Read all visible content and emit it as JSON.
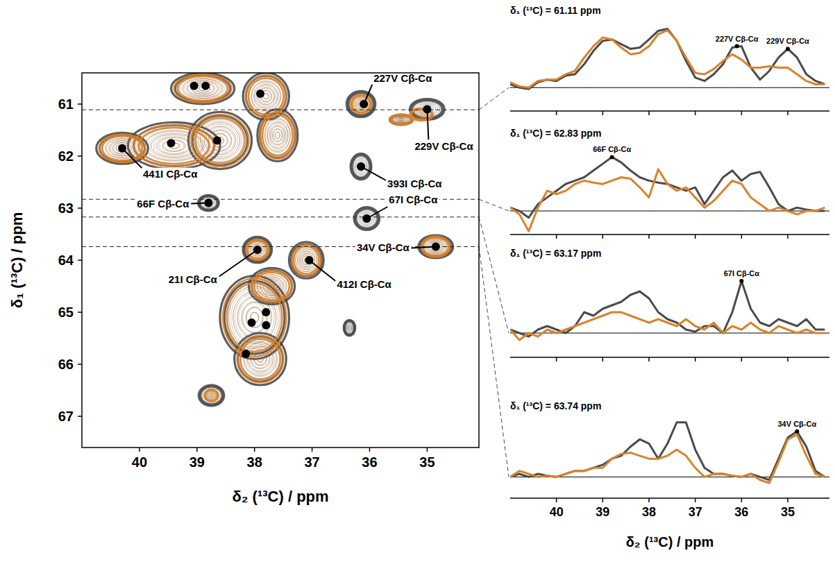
{
  "chart_data": [
    {
      "type": "contour",
      "x_label": "δ₂ (¹³C) / ppm",
      "y_label": "δ₁ (¹³C) / ppm",
      "xlim": [
        41.0,
        34.1
      ],
      "ylim": [
        60.4,
        67.6
      ],
      "xticks": [
        40,
        39,
        38,
        37,
        36,
        35
      ],
      "yticks": [
        61,
        62,
        63,
        64,
        65,
        66,
        67
      ],
      "series": [
        {
          "color": "#4a4a4a",
          "peaks": [
            {
              "x": 40.3,
              "y": 61.85,
              "x_width": 0.45,
              "y_width": 0.3
            },
            {
              "x": 39.4,
              "y": 61.8,
              "x_width": 0.8,
              "y_width": 0.45
            },
            {
              "x": 38.6,
              "y": 61.7,
              "x_width": 0.55,
              "y_width": 0.55
            },
            {
              "x": 38.9,
              "y": 60.7,
              "x_width": 0.55,
              "y_width": 0.3
            },
            {
              "x": 37.8,
              "y": 60.85,
              "x_width": 0.4,
              "y_width": 0.45
            },
            {
              "x": 37.6,
              "y": 61.6,
              "x_width": 0.35,
              "y_width": 0.5
            },
            {
              "x": 36.15,
              "y": 61.0,
              "x_width": 0.25,
              "y_width": 0.25
            },
            {
              "x": 35.0,
              "y": 61.1,
              "x_width": 0.3,
              "y_width": 0.2
            },
            {
              "x": 35.45,
              "y": 61.3,
              "x_width": 0.2,
              "y_width": 0.1
            },
            {
              "x": 36.15,
              "y": 62.2,
              "x_width": 0.18,
              "y_width": 0.25
            },
            {
              "x": 38.8,
              "y": 62.9,
              "x_width": 0.18,
              "y_width": 0.15
            },
            {
              "x": 36.05,
              "y": 63.2,
              "x_width": 0.22,
              "y_width": 0.22
            },
            {
              "x": 37.95,
              "y": 63.8,
              "x_width": 0.25,
              "y_width": 0.25
            },
            {
              "x": 37.1,
              "y": 64.0,
              "x_width": 0.3,
              "y_width": 0.35
            },
            {
              "x": 34.85,
              "y": 63.74,
              "x_width": 0.3,
              "y_width": 0.22
            },
            {
              "x": 38.0,
              "y": 65.1,
              "x_width": 0.6,
              "y_width": 0.8
            },
            {
              "x": 37.7,
              "y": 64.5,
              "x_width": 0.4,
              "y_width": 0.35
            },
            {
              "x": 37.9,
              "y": 65.9,
              "x_width": 0.45,
              "y_width": 0.5
            },
            {
              "x": 38.75,
              "y": 66.6,
              "x_width": 0.22,
              "y_width": 0.2
            },
            {
              "x": 36.35,
              "y": 65.3,
              "x_width": 0.1,
              "y_width": 0.15
            }
          ]
        },
        {
          "color": "#d9822b",
          "peaks": [
            {
              "x": 40.3,
              "y": 61.85,
              "x_width": 0.4,
              "y_width": 0.27
            },
            {
              "x": 39.4,
              "y": 61.8,
              "x_width": 0.7,
              "y_width": 0.4
            },
            {
              "x": 38.6,
              "y": 61.7,
              "x_width": 0.5,
              "y_width": 0.5
            },
            {
              "x": 38.9,
              "y": 60.7,
              "x_width": 0.5,
              "y_width": 0.27
            },
            {
              "x": 37.8,
              "y": 60.85,
              "x_width": 0.35,
              "y_width": 0.4
            },
            {
              "x": 37.6,
              "y": 61.6,
              "x_width": 0.3,
              "y_width": 0.45
            },
            {
              "x": 36.15,
              "y": 61.0,
              "x_width": 0.18,
              "y_width": 0.18
            },
            {
              "x": 35.1,
              "y": 61.2,
              "x_width": 0.2,
              "y_width": 0.12
            },
            {
              "x": 35.45,
              "y": 61.3,
              "x_width": 0.2,
              "y_width": 0.1
            },
            {
              "x": 37.95,
              "y": 63.8,
              "x_width": 0.2,
              "y_width": 0.2
            },
            {
              "x": 37.1,
              "y": 64.0,
              "x_width": 0.25,
              "y_width": 0.3
            },
            {
              "x": 34.85,
              "y": 63.74,
              "x_width": 0.25,
              "y_width": 0.2
            },
            {
              "x": 38.0,
              "y": 65.1,
              "x_width": 0.55,
              "y_width": 0.75
            },
            {
              "x": 37.7,
              "y": 64.5,
              "x_width": 0.35,
              "y_width": 0.3
            },
            {
              "x": 37.9,
              "y": 65.9,
              "x_width": 0.4,
              "y_width": 0.45
            },
            {
              "x": 38.75,
              "y": 66.6,
              "x_width": 0.12,
              "y_width": 0.12
            }
          ]
        }
      ],
      "points": [
        {
          "x": 39.05,
          "y": 60.65
        },
        {
          "x": 38.85,
          "y": 60.65
        },
        {
          "x": 37.9,
          "y": 60.8
        },
        {
          "x": 39.45,
          "y": 61.75
        },
        {
          "x": 38.65,
          "y": 61.7
        },
        {
          "x": 37.8,
          "y": 65.0
        },
        {
          "x": 38.05,
          "y": 65.2
        },
        {
          "x": 37.8,
          "y": 65.25
        },
        {
          "x": 38.15,
          "y": 65.8
        }
      ],
      "annotations": [
        {
          "text": "227V Cβ-Cα",
          "x": 36.1,
          "y": 61.0
        },
        {
          "text": "229V Cβ-Cα",
          "x": 35.0,
          "y": 61.1
        },
        {
          "text": "441I Cβ-Cα",
          "x": 40.3,
          "y": 61.85
        },
        {
          "text": "393I Cβ-Cα",
          "x": 36.15,
          "y": 62.2
        },
        {
          "text": "66F Cβ-Cα",
          "x": 38.8,
          "y": 62.9
        },
        {
          "text": "67I Cβ-Cα",
          "x": 36.05,
          "y": 63.2
        },
        {
          "text": "21I Cβ-Cα",
          "x": 37.95,
          "y": 63.8
        },
        {
          "text": "412I Cβ-Cα",
          "x": 37.05,
          "y": 64.0
        },
        {
          "text": "34V Cβ-Cα",
          "x": 34.85,
          "y": 63.74
        }
      ]
    },
    {
      "type": "line",
      "title": "δ₁ (¹³C) = 61.11 ppm",
      "position": 61.11,
      "x": [
        41.0,
        40.8,
        40.6,
        40.4,
        40.2,
        40.0,
        39.8,
        39.6,
        39.4,
        39.2,
        39.0,
        38.8,
        38.6,
        38.4,
        38.2,
        38.0,
        37.8,
        37.6,
        37.4,
        37.2,
        37.0,
        36.8,
        36.6,
        36.4,
        36.2,
        36.0,
        35.8,
        35.6,
        35.4,
        35.2,
        35.0,
        34.8,
        34.6,
        34.4,
        34.2
      ],
      "series": [
        {
          "color": "#4a4a4a",
          "values": [
            0.05,
            0.0,
            -0.02,
            0.08,
            0.12,
            0.1,
            0.18,
            0.2,
            0.35,
            0.55,
            0.7,
            0.72,
            0.65,
            0.58,
            0.6,
            0.72,
            0.85,
            0.88,
            0.7,
            0.4,
            0.15,
            0.1,
            0.2,
            0.35,
            0.6,
            0.62,
            0.3,
            0.12,
            0.25,
            0.45,
            0.58,
            0.45,
            0.2,
            0.1,
            0.05
          ]
        },
        {
          "color": "#d9822b",
          "values": [
            0.08,
            0.02,
            0.0,
            0.1,
            0.12,
            0.12,
            0.2,
            0.25,
            0.45,
            0.62,
            0.75,
            0.72,
            0.6,
            0.5,
            0.52,
            0.62,
            0.8,
            0.86,
            0.7,
            0.45,
            0.22,
            0.2,
            0.28,
            0.4,
            0.5,
            0.42,
            0.3,
            0.3,
            0.32,
            0.3,
            0.3,
            0.2,
            0.1,
            0.05,
            0.05
          ]
        }
      ],
      "xlim": [
        41.0,
        34.1
      ],
      "ylim": [
        -0.35,
        1.0
      ],
      "xticks": [
        40,
        39,
        38,
        37,
        36,
        35
      ],
      "tick_labels": false,
      "annotations": [
        {
          "text": "227V Cβ-Cα",
          "x": 36.1,
          "y": 0.62
        },
        {
          "text": "229V Cβ-Cα",
          "x": 35.0,
          "y": 0.58
        }
      ]
    },
    {
      "type": "line",
      "title": "δ₁ (¹³C) = 62.83 ppm",
      "position": 62.83,
      "x": [
        41.0,
        40.8,
        40.6,
        40.4,
        40.2,
        40.0,
        39.8,
        39.6,
        39.4,
        39.2,
        39.0,
        38.8,
        38.6,
        38.4,
        38.2,
        38.0,
        37.8,
        37.6,
        37.4,
        37.2,
        37.0,
        36.8,
        36.6,
        36.4,
        36.2,
        36.0,
        35.8,
        35.6,
        35.4,
        35.2,
        35.0,
        34.8,
        34.6,
        34.4,
        34.2
      ],
      "series": [
        {
          "color": "#4a4a4a",
          "values": [
            0.05,
            0.0,
            -0.1,
            0.1,
            0.2,
            0.3,
            0.4,
            0.45,
            0.5,
            0.6,
            0.7,
            0.8,
            0.72,
            0.6,
            0.5,
            0.45,
            0.42,
            0.4,
            0.35,
            0.3,
            0.35,
            0.1,
            0.3,
            0.5,
            0.6,
            0.45,
            0.55,
            0.58,
            0.35,
            0.1,
            0.0,
            0.05,
            0.02,
            0.0,
            0.0
          ]
        },
        {
          "color": "#d9822b",
          "values": [
            0.05,
            -0.05,
            -0.3,
            0.05,
            0.3,
            0.25,
            0.3,
            0.4,
            0.45,
            0.42,
            0.4,
            0.45,
            0.5,
            0.48,
            0.35,
            0.2,
            0.62,
            0.4,
            0.3,
            0.35,
            0.2,
            0.05,
            0.15,
            0.3,
            0.45,
            0.4,
            0.2,
            0.1,
            0.0,
            0.05,
            0.0,
            -0.05,
            0.0,
            0.0,
            0.05
          ]
        }
      ],
      "xlim": [
        41.0,
        34.1
      ],
      "ylim": [
        -0.35,
        1.0
      ],
      "xticks": [
        40,
        39,
        38,
        37,
        36,
        35
      ],
      "tick_labels": false,
      "annotations": [
        {
          "text": "66F Cβ-Cα",
          "x": 38.8,
          "y": 0.8
        }
      ]
    },
    {
      "type": "line",
      "title": "δ₁ (¹³C) = 63.17 ppm",
      "position": 63.17,
      "x": [
        41.0,
        40.8,
        40.6,
        40.4,
        40.2,
        40.0,
        39.8,
        39.6,
        39.4,
        39.2,
        39.0,
        38.8,
        38.6,
        38.4,
        38.2,
        38.0,
        37.8,
        37.6,
        37.4,
        37.2,
        37.0,
        36.8,
        36.6,
        36.4,
        36.2,
        36.0,
        35.8,
        35.6,
        35.4,
        35.2,
        35.0,
        34.8,
        34.6,
        34.4,
        34.2
      ],
      "series": [
        {
          "color": "#4a4a4a",
          "values": [
            0.05,
            0.0,
            -0.05,
            0.05,
            0.1,
            0.05,
            0.0,
            0.1,
            0.3,
            0.25,
            0.35,
            0.4,
            0.45,
            0.55,
            0.6,
            0.5,
            0.3,
            0.2,
            0.15,
            0.05,
            0.02,
            0.1,
            0.1,
            0.0,
            0.3,
            0.75,
            0.35,
            0.15,
            0.1,
            0.2,
            0.15,
            0.1,
            0.2,
            0.05,
            0.05
          ]
        },
        {
          "color": "#d9822b",
          "values": [
            0.05,
            -0.1,
            0.0,
            -0.05,
            0.05,
            0.0,
            0.05,
            0.1,
            0.15,
            0.2,
            0.25,
            0.3,
            0.3,
            0.25,
            0.2,
            0.15,
            0.2,
            0.15,
            0.1,
            0.2,
            0.1,
            0.05,
            0.15,
            0.0,
            0.1,
            0.05,
            0.15,
            0.05,
            0.0,
            0.1,
            0.05,
            0.0,
            0.05,
            0.0,
            0.0
          ]
        }
      ],
      "xlim": [
        41.0,
        34.1
      ],
      "ylim": [
        -0.35,
        1.0
      ],
      "xticks": [
        40,
        39,
        38,
        37,
        36,
        35
      ],
      "tick_labels": false,
      "annotations": [
        {
          "text": "67I Cβ-Cα",
          "x": 36.0,
          "y": 0.75
        }
      ]
    },
    {
      "type": "line",
      "title": "δ₁ (¹³C) = 63.74 ppm",
      "position": 63.74,
      "x_label": "δ₂ (¹³C) / ppm",
      "x": [
        41.0,
        40.8,
        40.6,
        40.4,
        40.2,
        40.0,
        39.8,
        39.6,
        39.4,
        39.2,
        39.0,
        38.8,
        38.6,
        38.4,
        38.2,
        38.0,
        37.8,
        37.6,
        37.4,
        37.2,
        37.0,
        36.8,
        36.6,
        36.4,
        36.2,
        36.0,
        35.8,
        35.6,
        35.4,
        35.2,
        35.0,
        34.8,
        34.6,
        34.4,
        34.2
      ],
      "series": [
        {
          "color": "#4a4a4a",
          "values": [
            0.0,
            0.05,
            0.0,
            0.05,
            0.02,
            0.0,
            0.05,
            0.1,
            0.1,
            0.15,
            0.2,
            0.3,
            0.35,
            0.5,
            0.62,
            0.55,
            0.3,
            0.55,
            0.9,
            0.9,
            0.45,
            0.15,
            0.05,
            0.05,
            0.02,
            0.0,
            0.05,
            0.0,
            -0.05,
            0.3,
            0.65,
            0.75,
            0.5,
            0.1,
            0.0
          ]
        },
        {
          "color": "#d9822b",
          "values": [
            0.0,
            0.1,
            0.05,
            0.0,
            0.02,
            0.0,
            0.05,
            0.1,
            0.1,
            0.15,
            0.15,
            0.3,
            0.38,
            0.4,
            0.35,
            0.3,
            0.3,
            0.35,
            0.45,
            0.35,
            0.15,
            0.0,
            0.05,
            0.05,
            0.02,
            0.0,
            0.05,
            -0.05,
            -0.1,
            0.25,
            0.62,
            0.7,
            0.35,
            0.05,
            0.0
          ]
        }
      ],
      "xlim": [
        41.0,
        34.1
      ],
      "ylim": [
        -0.35,
        1.0
      ],
      "xticks": [
        40,
        39,
        38,
        37,
        36,
        35
      ],
      "tick_labels": "x",
      "annotations": [
        {
          "text": "34V Cβ-Cα",
          "x": 34.8,
          "y": 0.75
        }
      ]
    }
  ]
}
